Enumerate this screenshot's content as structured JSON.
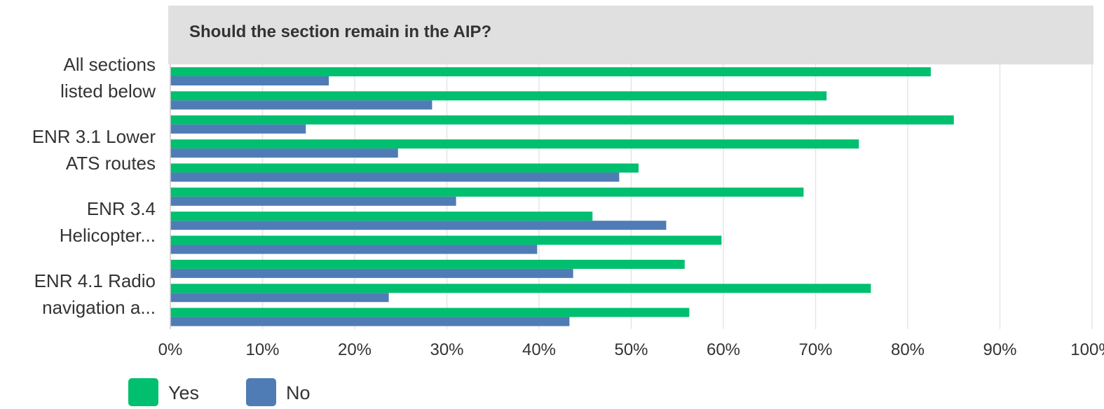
{
  "chart_data": {
    "type": "bar",
    "orientation": "horizontal",
    "title": "Should the section remain in the AIP?",
    "categories": [
      "All sections\nlisted below",
      null,
      null,
      "ENR 3.1 Lower\nATS routes",
      null,
      null,
      "ENR 3.4\nHelicopter...",
      null,
      null,
      "ENR 4.1 Radio\nnavigation a...",
      null
    ],
    "series": [
      {
        "name": "Yes",
        "color": "#00bf6f",
        "values": [
          82.5,
          71.2,
          85.0,
          74.7,
          50.8,
          68.7,
          45.8,
          59.8,
          55.8,
          76.0,
          56.3
        ]
      },
      {
        "name": "No",
        "color": "#507cb6",
        "values": [
          17.2,
          28.4,
          14.7,
          24.7,
          48.7,
          31.0,
          53.8,
          39.8,
          43.7,
          23.7,
          43.3
        ]
      }
    ],
    "xlim": [
      0,
      100
    ],
    "xticks": [
      {
        "value": 0,
        "label": "0%"
      },
      {
        "value": 10,
        "label": "10%"
      },
      {
        "value": 20,
        "label": "20%"
      },
      {
        "value": 30,
        "label": "30%"
      },
      {
        "value": 40,
        "label": "40%"
      },
      {
        "value": 50,
        "label": "50%"
      },
      {
        "value": 60,
        "label": "60%"
      },
      {
        "value": 70,
        "label": "70%"
      },
      {
        "value": 80,
        "label": "80%"
      },
      {
        "value": 90,
        "label": "90%"
      },
      {
        "value": 100,
        "label": "100%"
      }
    ],
    "grid": true,
    "legend": "bottom"
  }
}
